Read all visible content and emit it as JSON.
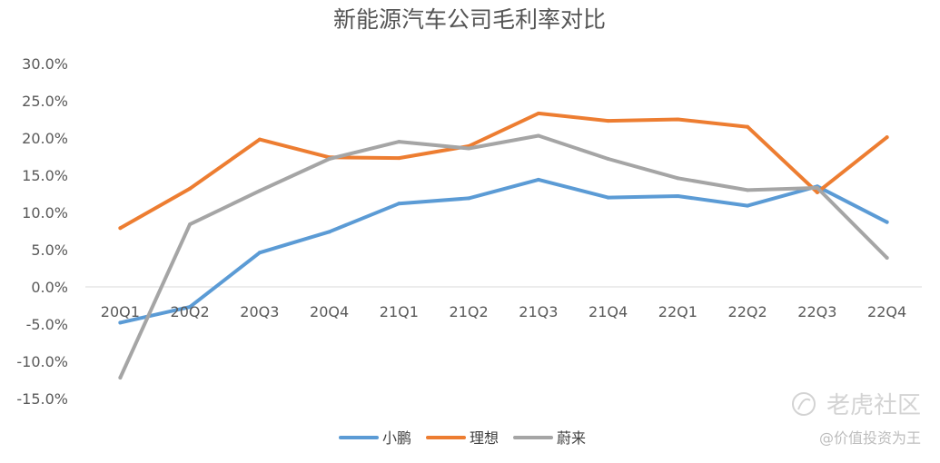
{
  "chart_data": {
    "type": "line",
    "title": "新能源汽车公司毛利率对比",
    "categories": [
      "20Q1",
      "20Q2",
      "20Q3",
      "20Q4",
      "21Q1",
      "21Q2",
      "21Q3",
      "21Q4",
      "22Q1",
      "22Q2",
      "22Q3",
      "22Q4"
    ],
    "series": [
      {
        "name": "小鹏",
        "color": "#5b9bd5",
        "values": [
          -4.8,
          -2.7,
          4.6,
          7.4,
          11.2,
          11.9,
          14.4,
          12.0,
          12.2,
          10.9,
          13.5,
          8.7
        ]
      },
      {
        "name": "理想",
        "color": "#ed7d31",
        "values": [
          7.9,
          13.2,
          19.8,
          17.4,
          17.3,
          18.9,
          23.3,
          22.3,
          22.5,
          21.5,
          12.7,
          20.1
        ]
      },
      {
        "name": "蔚来",
        "color": "#a5a5a5",
        "values": [
          -12.2,
          8.4,
          12.9,
          17.2,
          19.5,
          18.6,
          20.3,
          17.2,
          14.6,
          13.0,
          13.3,
          3.9
        ]
      }
    ],
    "yticks": [
      "30.0%",
      "25.0%",
      "20.0%",
      "15.0%",
      "10.0%",
      "5.0%",
      "0.0%",
      "-5.0%",
      "-10.0%",
      "-15.0%"
    ],
    "ylim": [
      -15,
      30
    ],
    "ystep": 5,
    "xlabel": "",
    "ylabel": "",
    "legend_position": "bottom"
  },
  "watermark": {
    "brand": "老虎社区",
    "author": "@价值投资为王"
  }
}
